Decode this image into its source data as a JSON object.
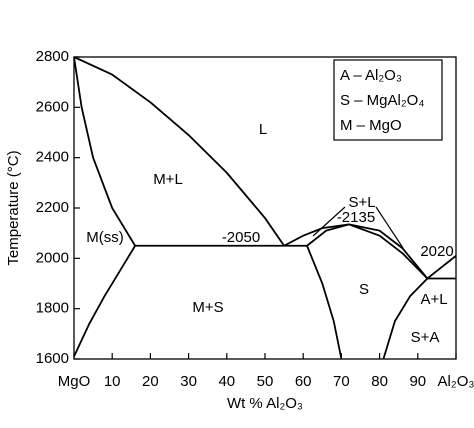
{
  "chart_data": {
    "type": "line",
    "xlabel": "Wt % Al₂O₃",
    "ylabel": "Temperature (°C)",
    "xlim": [
      0,
      100
    ],
    "ylim": [
      1600,
      2800
    ],
    "xticks": [
      {
        "value": 0,
        "label": "MgO"
      },
      10,
      20,
      30,
      40,
      50,
      60,
      70,
      80,
      90,
      {
        "value": 100,
        "label": "Al₂O₃"
      }
    ],
    "yticks": [
      1600,
      1800,
      2000,
      2200,
      2400,
      2600,
      2800
    ],
    "color": "#000000",
    "key": [
      "A – Al₂O₃",
      "S – MgAl₂O₄",
      "M – MgO"
    ],
    "annotations": [
      "L",
      "M+L",
      "M(ss)",
      "-2050",
      "S+L",
      "-2135",
      "2020",
      "S",
      "M+S",
      "A+L",
      "S+A"
    ],
    "series": [
      {
        "x": [
          0,
          10,
          20,
          30,
          40,
          50,
          55
        ],
        "values": [
          2800,
          2730,
          2620,
          2490,
          2340,
          2160,
          2050
        ]
      },
      {
        "x": [
          0,
          2,
          5,
          10,
          16
        ],
        "values": [
          2800,
          2600,
          2400,
          2200,
          2050
        ]
      },
      {
        "x": [
          16,
          12,
          8,
          4,
          0
        ],
        "values": [
          2050,
          1950,
          1850,
          1740,
          1610
        ]
      },
      {
        "x": [
          16,
          61
        ],
        "values": [
          2050,
          2050
        ]
      },
      {
        "x": [
          55,
          60,
          65,
          72,
          80,
          86,
          92.5
        ],
        "values": [
          2050,
          2090,
          2120,
          2135,
          2110,
          2040,
          1920
        ]
      },
      {
        "x": [
          61,
          66,
          72,
          80,
          86,
          92.5
        ],
        "values": [
          2050,
          2110,
          2135,
          2090,
          2020,
          1920
        ]
      },
      {
        "x": [
          61,
          65,
          68,
          70
        ],
        "values": [
          2050,
          1900,
          1750,
          1600
        ]
      },
      {
        "x": [
          92.5,
          88,
          84,
          81
        ],
        "values": [
          1920,
          1850,
          1750,
          1600
        ]
      },
      {
        "x": [
          92.5,
          100
        ],
        "values": [
          1920,
          1920
        ]
      },
      {
        "x": [
          92.5,
          100
        ],
        "values": [
          1920,
          2010
        ]
      }
    ]
  }
}
